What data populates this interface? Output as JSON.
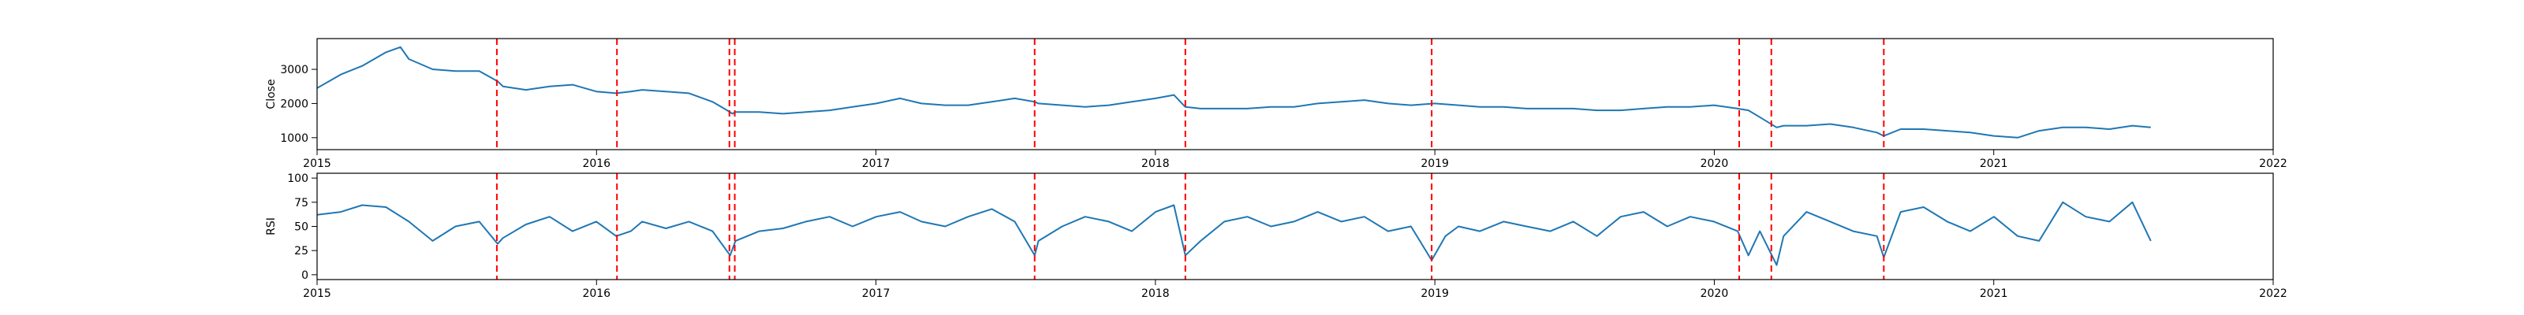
{
  "colors": {
    "line": "#1f77b4",
    "events": "#ff0000",
    "axes": "#000000",
    "background": "#ffffff"
  },
  "chart_data": [
    {
      "type": "line",
      "ylabel": "Close",
      "ylim": [
        650,
        3900
      ],
      "yticks": [
        1000,
        2000,
        3000
      ],
      "x_range": [
        "2015-01-01",
        "2022-01-01"
      ],
      "x_tick_labels": [
        "2015",
        "2016",
        "2017",
        "2018",
        "2019",
        "2020",
        "2021",
        "2022"
      ],
      "grid": false,
      "series": [
        {
          "x": [
            "2015-01-01",
            "2015-02-01",
            "2015-03-01",
            "2015-04-01",
            "2015-04-20",
            "2015-05-01",
            "2015-06-01",
            "2015-07-01",
            "2015-08-01",
            "2015-08-25",
            "2015-09-01",
            "2015-10-01",
            "2015-11-01",
            "2015-12-01",
            "2016-01-01",
            "2016-01-27",
            "2016-02-15",
            "2016-03-01",
            "2016-04-01",
            "2016-05-01",
            "2016-06-01",
            "2016-06-20",
            "2016-06-27",
            "2016-07-01",
            "2016-08-01",
            "2016-09-01",
            "2016-10-01",
            "2016-11-01",
            "2016-12-01",
            "2017-01-01",
            "2017-02-01",
            "2017-03-01",
            "2017-04-01",
            "2017-05-01",
            "2017-06-01",
            "2017-07-01",
            "2017-07-27",
            "2017-08-01",
            "2017-09-01",
            "2017-10-01",
            "2017-11-01",
            "2017-12-01",
            "2018-01-01",
            "2018-01-25",
            "2018-02-09",
            "2018-03-01",
            "2018-04-01",
            "2018-05-01",
            "2018-06-01",
            "2018-07-01",
            "2018-08-01",
            "2018-09-01",
            "2018-10-01",
            "2018-11-01",
            "2018-12-01",
            "2019-01-01",
            "2019-02-01",
            "2019-03-01",
            "2019-04-01",
            "2019-05-01",
            "2019-06-01",
            "2019-07-01",
            "2019-08-01",
            "2019-09-01",
            "2019-10-01",
            "2019-11-01",
            "2019-12-01",
            "2020-01-01",
            "2020-02-01",
            "2020-02-15",
            "2020-03-01",
            "2020-03-23",
            "2020-04-01",
            "2020-05-01",
            "2020-06-01",
            "2020-07-01",
            "2020-08-01",
            "2020-08-10",
            "2020-09-01",
            "2020-10-01",
            "2020-11-01",
            "2020-12-01",
            "2021-01-01",
            "2021-02-01",
            "2021-03-01",
            "2021-04-01",
            "2021-05-01",
            "2021-06-01",
            "2021-07-01",
            "2021-07-25"
          ],
          "values": [
            2450,
            2850,
            3100,
            3500,
            3650,
            3300,
            3000,
            2950,
            2950,
            2650,
            2500,
            2400,
            2500,
            2550,
            2350,
            2300,
            2350,
            2400,
            2350,
            2300,
            2050,
            1800,
            1700,
            1750,
            1750,
            1700,
            1750,
            1800,
            1900,
            2000,
            2150,
            2000,
            1950,
            1950,
            2050,
            2150,
            2050,
            2000,
            1950,
            1900,
            1950,
            2050,
            2150,
            2250,
            1900,
            1850,
            1850,
            1850,
            1900,
            1900,
            2000,
            2050,
            2100,
            2000,
            1950,
            2000,
            1950,
            1900,
            1900,
            1850,
            1850,
            1850,
            1800,
            1800,
            1850,
            1900,
            1900,
            1950,
            1850,
            1800,
            1600,
            1300,
            1350,
            1350,
            1400,
            1300,
            1150,
            1050,
            1250,
            1250,
            1200,
            1150,
            1050,
            1000,
            1200,
            1300,
            1300,
            1250,
            1350,
            1300
          ]
        }
      ]
    },
    {
      "type": "line",
      "ylabel": "RSI",
      "ylim": [
        -5,
        105
      ],
      "yticks": [
        0,
        25,
        50,
        75,
        100
      ],
      "x_range": [
        "2015-01-01",
        "2022-01-01"
      ],
      "x_tick_labels": [
        "2015",
        "2016",
        "2017",
        "2018",
        "2019",
        "2020",
        "2021",
        "2022"
      ],
      "grid": false,
      "series": [
        {
          "x": [
            "2015-01-01",
            "2015-02-01",
            "2015-03-01",
            "2015-04-01",
            "2015-05-01",
            "2015-06-01",
            "2015-07-01",
            "2015-08-01",
            "2015-08-25",
            "2015-09-01",
            "2015-10-01",
            "2015-11-01",
            "2015-12-01",
            "2016-01-01",
            "2016-01-27",
            "2016-02-15",
            "2016-03-01",
            "2016-04-01",
            "2016-05-01",
            "2016-06-01",
            "2016-06-24",
            "2016-07-01",
            "2016-08-01",
            "2016-09-01",
            "2016-10-01",
            "2016-11-01",
            "2016-12-01",
            "2017-01-01",
            "2017-02-01",
            "2017-03-01",
            "2017-04-01",
            "2017-05-01",
            "2017-06-01",
            "2017-07-01",
            "2017-07-27",
            "2017-08-01",
            "2017-09-01",
            "2017-10-01",
            "2017-11-01",
            "2017-12-01",
            "2018-01-01",
            "2018-01-25",
            "2018-02-09",
            "2018-03-01",
            "2018-04-01",
            "2018-05-01",
            "2018-06-01",
            "2018-07-01",
            "2018-08-01",
            "2018-09-01",
            "2018-10-01",
            "2018-11-01",
            "2018-12-01",
            "2018-12-28",
            "2019-01-15",
            "2019-02-01",
            "2019-03-01",
            "2019-04-01",
            "2019-05-01",
            "2019-06-01",
            "2019-07-01",
            "2019-08-01",
            "2019-09-01",
            "2019-10-01",
            "2019-11-01",
            "2019-12-01",
            "2020-01-01",
            "2020-02-01",
            "2020-02-15",
            "2020-03-01",
            "2020-03-23",
            "2020-04-01",
            "2020-05-01",
            "2020-06-01",
            "2020-07-01",
            "2020-08-01",
            "2020-08-10",
            "2020-09-01",
            "2020-10-01",
            "2020-11-01",
            "2020-12-01",
            "2021-01-01",
            "2021-02-01",
            "2021-03-01",
            "2021-04-01",
            "2021-05-01",
            "2021-06-01",
            "2021-07-01",
            "2021-07-25"
          ],
          "values": [
            62,
            65,
            72,
            70,
            55,
            35,
            50,
            55,
            32,
            38,
            52,
            60,
            45,
            55,
            40,
            45,
            55,
            48,
            55,
            45,
            20,
            35,
            45,
            48,
            55,
            60,
            50,
            60,
            65,
            55,
            50,
            60,
            68,
            55,
            20,
            35,
            50,
            60,
            55,
            45,
            65,
            72,
            20,
            35,
            55,
            60,
            50,
            55,
            65,
            55,
            60,
            45,
            50,
            15,
            40,
            50,
            45,
            55,
            50,
            45,
            55,
            40,
            60,
            65,
            50,
            60,
            55,
            45,
            20,
            45,
            10,
            40,
            65,
            55,
            45,
            40,
            18,
            65,
            70,
            55,
            45,
            60,
            40,
            35,
            75,
            60,
            55,
            75,
            35
          ]
        }
      ]
    }
  ],
  "event_dates": [
    "2015-08-24",
    "2016-01-28",
    "2016-06-23",
    "2016-06-30",
    "2017-07-27",
    "2018-02-09",
    "2018-12-28",
    "2020-02-03",
    "2020-03-16",
    "2020-08-10"
  ]
}
